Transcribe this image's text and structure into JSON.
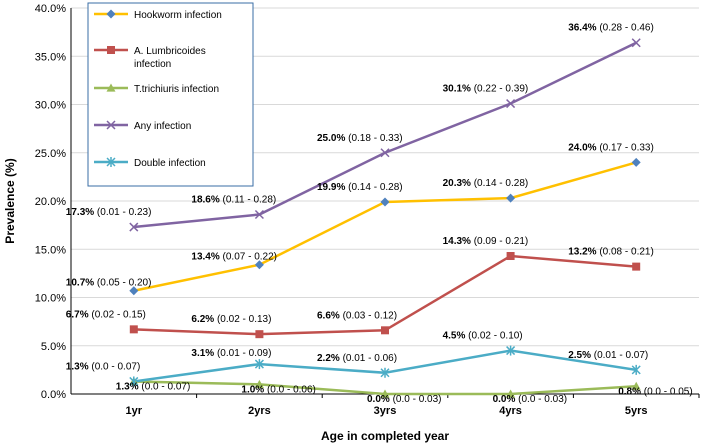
{
  "chart_data": {
    "type": "line",
    "xlabel": "Age in completed year",
    "ylabel": "Prevalence (%)",
    "ylim": [
      0,
      40
    ],
    "ytick_step": 5,
    "ytick_labels": [
      "0.0%",
      "5.0%",
      "10.0%",
      "15.0%",
      "20.0%",
      "25.0%",
      "30.0%",
      "35.0%",
      "40.0%"
    ],
    "categories": [
      "1yr",
      "2yrs",
      "3yrs",
      "4yrs",
      "5yrs"
    ],
    "legend_position": "top-left",
    "series": [
      {
        "name": "Hookworm  infection",
        "color": "#4F81BD",
        "line_color": "#FFC000",
        "marker": "diamond",
        "values": [
          10.7,
          13.4,
          19.9,
          20.3,
          24.0
        ],
        "labels": [
          {
            "pct": "10.7%",
            "ci": "(0.05 - 0.20)"
          },
          {
            "pct": "13.4%",
            "ci": "(0.07 - 0.22)"
          },
          {
            "pct": "19.9%",
            "ci": "(0.14 - 0.28)"
          },
          {
            "pct": "20.3%",
            "ci": "(0.14 - 0.28)"
          },
          {
            "pct": "24.0%",
            "ci": "(0.17 - 0.33)"
          }
        ]
      },
      {
        "name_lines": [
          "A. Lumbricoides",
          "infection"
        ],
        "name": "A. Lumbricoides infection",
        "color": "#C0504D",
        "line_color": "#C0504D",
        "marker": "square",
        "values": [
          6.7,
          6.2,
          6.6,
          14.3,
          13.2
        ],
        "labels": [
          {
            "pct": "6.7%",
            "ci": "(0.02 - 0.15)"
          },
          {
            "pct": "6.2%",
            "ci": "(0.02 - 0.13)"
          },
          {
            "pct": "6.6%",
            "ci": "(0.03 - 0.12)"
          },
          {
            "pct": "14.3%",
            "ci": "(0.09 - 0.21)"
          },
          {
            "pct": "13.2%",
            "ci": "(0.08 - 0.21)"
          }
        ]
      },
      {
        "name": "T.trichiuris  infection",
        "color": "#9BBB59",
        "line_color": "#9BBB59",
        "marker": "triangle",
        "values": [
          1.3,
          1.0,
          0.0,
          0.0,
          0.8
        ],
        "labels": [
          {
            "pct": "1.3%",
            "ci": "(0.0 - 0.07)"
          },
          {
            "pct": "1.0%",
            "ci": "(0.0 - 0.06)"
          },
          {
            "pct": "0.0%",
            "ci": "(0.0 - 0.03)"
          },
          {
            "pct": "0.0%",
            "ci": "(0.0 - 0.03)"
          },
          {
            "pct": "0.8%",
            "ci": "(0.0 - 0.05)"
          }
        ]
      },
      {
        "name": "Any infection",
        "color": "#8064A2",
        "line_color": "#8064A2",
        "marker": "x",
        "values": [
          17.3,
          18.6,
          25.0,
          30.1,
          36.4
        ],
        "labels": [
          {
            "pct": "17.3%",
            "ci": "(0.01 - 0.23)"
          },
          {
            "pct": "18.6%",
            "ci": "(0.11 - 0.28)"
          },
          {
            "pct": "25.0%",
            "ci": "(0.18 - 0.33)"
          },
          {
            "pct": "30.1%",
            "ci": "(0.22 - 0.39)"
          },
          {
            "pct": "36.4%",
            "ci": "(0.28 - 0.46)"
          }
        ]
      },
      {
        "name": "Double infection",
        "color": "#4BACC6",
        "line_color": "#4BACC6",
        "marker": "star",
        "values": [
          1.3,
          3.1,
          2.2,
          4.5,
          2.5
        ],
        "labels": [
          {
            "pct": "1.3%",
            "ci": "(0.0 - 0.07)"
          },
          {
            "pct": "3.1%",
            "ci": "(0.01 - 0.09)"
          },
          {
            "pct": "2.2%",
            "ci": "(0.01 - 0.06)"
          },
          {
            "pct": "4.5%",
            "ci": "(0.02 - 0.10)"
          },
          {
            "pct": "2.5%",
            "ci": "(0.01 - 0.07)"
          }
        ]
      }
    ]
  }
}
